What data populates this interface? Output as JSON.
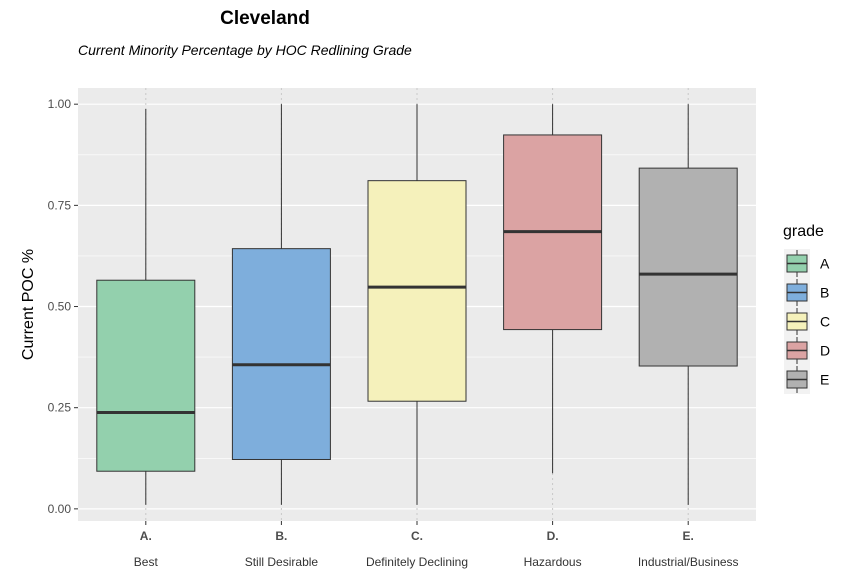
{
  "chart_data": {
    "type": "boxplot",
    "title": "Cleveland",
    "subtitle": "Current Minority Percentage by HOC Redlining Grade",
    "ylabel": "Current POC %",
    "ylim": [
      -0.03,
      1.04
    ],
    "yticks": [
      "0.00",
      "0.25",
      "0.50",
      "0.75",
      "1.00"
    ],
    "ytick_values": [
      0,
      0.25,
      0.5,
      0.75,
      1.0
    ],
    "categories": [
      "A.",
      "B.",
      "C.",
      "D.",
      "E."
    ],
    "category_descriptions": [
      "Best",
      "Still Desirable",
      "Definitely Declining",
      "Hazardous",
      "Industrial/Business"
    ],
    "boxes": [
      {
        "grade": "A",
        "min": 0.01,
        "q1": 0.093,
        "median": 0.238,
        "q3": 0.565,
        "max": 0.988
      },
      {
        "grade": "B",
        "min": 0.01,
        "q1": 0.122,
        "median": 0.356,
        "q3": 0.643,
        "max": 1.0
      },
      {
        "grade": "C",
        "min": 0.01,
        "q1": 0.266,
        "median": 0.548,
        "q3": 0.811,
        "max": 1.0
      },
      {
        "grade": "D",
        "min": 0.088,
        "q1": 0.443,
        "median": 0.685,
        "q3": 0.924,
        "max": 1.0
      },
      {
        "grade": "E",
        "min": 0.01,
        "q1": 0.353,
        "median": 0.58,
        "q3": 0.842,
        "max": 1.0
      }
    ],
    "legend": {
      "title": "grade",
      "placement": "right",
      "entries": [
        "A",
        "B",
        "C",
        "D",
        "E"
      ]
    },
    "colors": [
      "#93d0ad",
      "#7eaedc",
      "#f5f1bb",
      "#dba3a3",
      "#b1b1b1"
    ],
    "panel_background": "#ebebeb",
    "grid": true
  }
}
